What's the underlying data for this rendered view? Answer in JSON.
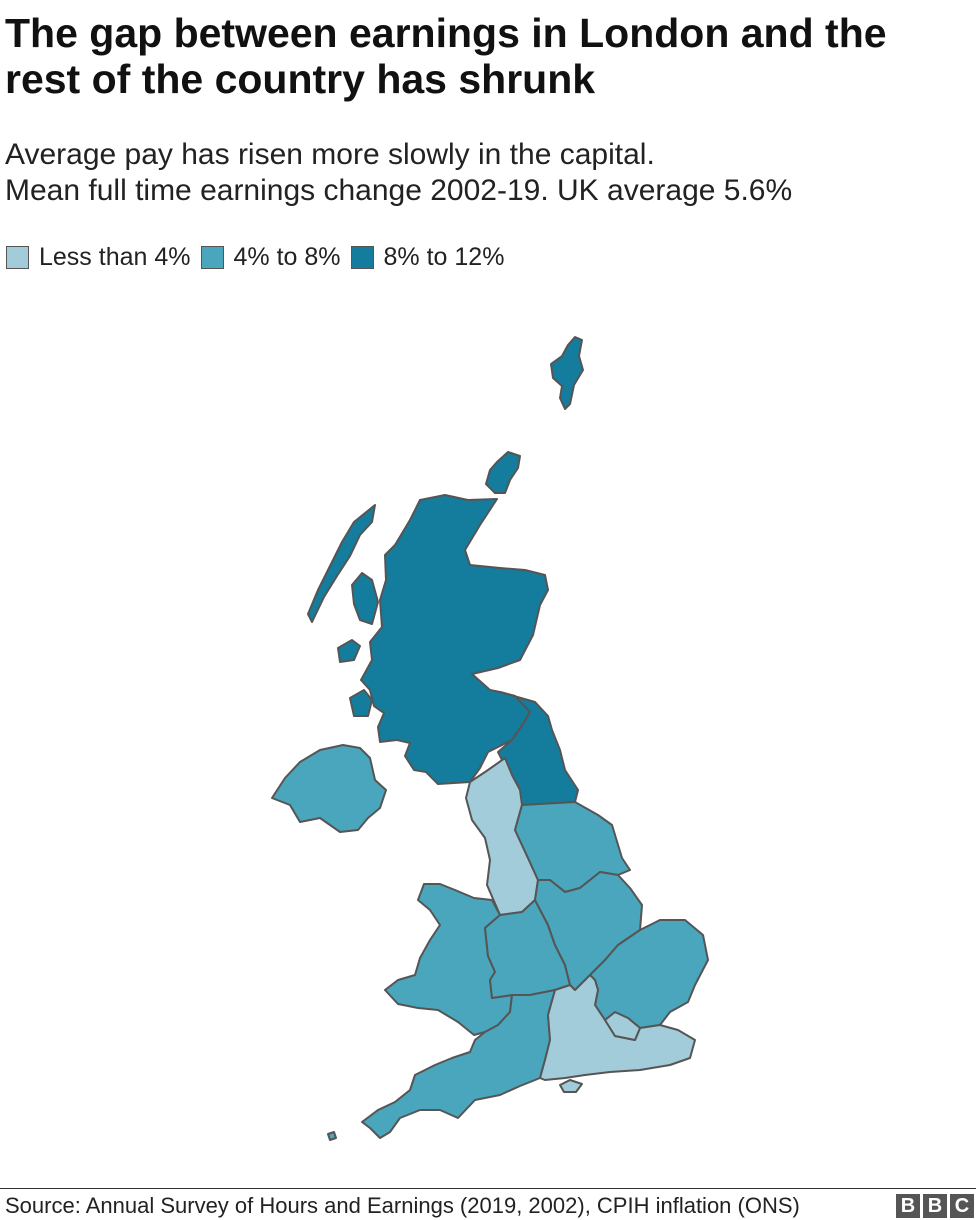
{
  "title": "The gap between earnings in London and the rest of the country has shrunk",
  "subtitle_line1": "Average pay has risen more slowly in the capital.",
  "subtitle_line2": "Mean full time earnings change 2002-19. UK average 5.6%",
  "legend": [
    {
      "label": "Less than 4%",
      "color": "#a3ccda"
    },
    {
      "label": "4% to 8%",
      "color": "#4aa6bd"
    },
    {
      "label": "8% to 12%",
      "color": "#147d9e"
    }
  ],
  "colors": {
    "low": "#a3ccda",
    "mid": "#4aa6bd",
    "high": "#147d9e",
    "border": "#555555"
  },
  "source": "Source: Annual Survey of Hours and Earnings (2019, 2002), CPIH inflation (ONS)",
  "logo": {
    "letters": [
      "B",
      "B",
      "C"
    ]
  },
  "regions": [
    {
      "name": "Scotland",
      "band": "8% to 12%"
    },
    {
      "name": "North East",
      "band": "8% to 12%"
    },
    {
      "name": "North West",
      "band": "Less than 4%"
    },
    {
      "name": "Yorkshire and The Humber",
      "band": "4% to 8%"
    },
    {
      "name": "Northern Ireland",
      "band": "4% to 8%"
    },
    {
      "name": "Wales",
      "band": "4% to 8%"
    },
    {
      "name": "West Midlands",
      "band": "4% to 8%"
    },
    {
      "name": "East Midlands",
      "band": "4% to 8%"
    },
    {
      "name": "East of England",
      "band": "4% to 8%"
    },
    {
      "name": "South West",
      "band": "4% to 8%"
    },
    {
      "name": "South East",
      "band": "Less than 4%"
    },
    {
      "name": "London",
      "band": "Less than 4%"
    }
  ]
}
